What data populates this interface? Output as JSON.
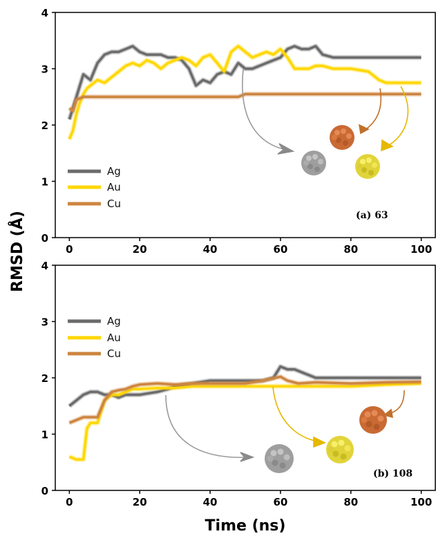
{
  "colors": {
    "Ag": "#6b6b6b",
    "Au": "#ffd700",
    "Cu": "#cd853f"
  },
  "chart_data": [
    {
      "type": "line",
      "panel_label": "(a) 63",
      "xlabel": "Time (ns)",
      "ylabel": "RMSD (Å)",
      "xlim": [
        -4,
        104
      ],
      "ylim": [
        0,
        4
      ],
      "xticks": [
        0,
        20,
        40,
        60,
        80,
        100
      ],
      "yticks": [
        0,
        1,
        2,
        3,
        4
      ],
      "legend_position": "center-left",
      "series": [
        {
          "name": "Ag",
          "x": [
            0,
            1,
            2,
            3,
            4,
            5,
            6,
            8,
            10,
            12,
            14,
            16,
            18,
            20,
            22,
            24,
            26,
            28,
            30,
            32,
            34,
            36,
            38,
            40,
            42,
            44,
            46,
            48,
            50,
            52,
            54,
            56,
            58,
            60,
            62,
            64,
            66,
            68,
            70,
            72,
            75,
            80,
            85,
            90,
            95,
            100
          ],
          "values": [
            2.1,
            2.3,
            2.5,
            2.7,
            2.9,
            2.85,
            2.8,
            3.1,
            3.25,
            3.3,
            3.3,
            3.35,
            3.4,
            3.3,
            3.25,
            3.25,
            3.25,
            3.2,
            3.2,
            3.15,
            3.0,
            2.7,
            2.8,
            2.75,
            2.9,
            2.95,
            2.9,
            3.1,
            3.0,
            3.0,
            3.05,
            3.1,
            3.15,
            3.2,
            3.35,
            3.4,
            3.35,
            3.35,
            3.4,
            3.25,
            3.2,
            3.2,
            3.2,
            3.2,
            3.2,
            3.2
          ]
        },
        {
          "name": "Au",
          "x": [
            0,
            1,
            2,
            3,
            4,
            5,
            6,
            8,
            10,
            12,
            14,
            16,
            18,
            20,
            22,
            24,
            26,
            28,
            30,
            32,
            34,
            36,
            38,
            40,
            42,
            44,
            46,
            48,
            50,
            52,
            54,
            56,
            58,
            60,
            62,
            64,
            66,
            68,
            70,
            72,
            75,
            80,
            85,
            88,
            90,
            92,
            95,
            100
          ],
          "values": [
            1.75,
            1.9,
            2.2,
            2.4,
            2.55,
            2.65,
            2.7,
            2.8,
            2.75,
            2.85,
            2.95,
            3.05,
            3.1,
            3.05,
            3.15,
            3.1,
            3.0,
            3.1,
            3.15,
            3.2,
            3.15,
            3.05,
            3.2,
            3.25,
            3.1,
            2.95,
            3.3,
            3.4,
            3.3,
            3.2,
            3.25,
            3.3,
            3.25,
            3.35,
            3.2,
            3.0,
            3.0,
            3.0,
            3.05,
            3.05,
            3.0,
            3.0,
            2.95,
            2.8,
            2.75,
            2.75,
            2.75,
            2.75
          ]
        },
        {
          "name": "Cu",
          "x": [
            0,
            1,
            2,
            4,
            6,
            10,
            20,
            30,
            40,
            45,
            48,
            50,
            52,
            60,
            70,
            80,
            90,
            100
          ],
          "values": [
            2.3,
            2.25,
            2.45,
            2.5,
            2.5,
            2.5,
            2.5,
            2.5,
            2.5,
            2.5,
            2.5,
            2.55,
            2.55,
            2.55,
            2.55,
            2.55,
            2.55,
            2.55
          ]
        }
      ]
    },
    {
      "type": "line",
      "panel_label": "(b) 108",
      "xlabel": "Time (ns)",
      "ylabel": "RMSD (Å)",
      "xlim": [
        -4,
        104
      ],
      "ylim": [
        0,
        4
      ],
      "xticks": [
        0,
        20,
        40,
        60,
        80,
        100
      ],
      "yticks": [
        0,
        1,
        2,
        3,
        4
      ],
      "legend_position": "upper-left",
      "series": [
        {
          "name": "Ag",
          "x": [
            0,
            2,
            4,
            6,
            8,
            10,
            12,
            14,
            16,
            18,
            20,
            22,
            25,
            28,
            30,
            35,
            40,
            45,
            50,
            55,
            58,
            60,
            62,
            64,
            66,
            70,
            75,
            80,
            85,
            90,
            95,
            100
          ],
          "values": [
            1.5,
            1.6,
            1.7,
            1.75,
            1.75,
            1.7,
            1.7,
            1.65,
            1.7,
            1.7,
            1.7,
            1.72,
            1.75,
            1.8,
            1.85,
            1.9,
            1.95,
            1.95,
            1.95,
            1.95,
            2.0,
            2.2,
            2.15,
            2.15,
            2.1,
            2.0,
            2.0,
            2.0,
            2.0,
            2.0,
            2.0,
            2.0
          ]
        },
        {
          "name": "Au",
          "x": [
            0,
            2,
            4,
            5,
            6,
            8,
            10,
            12,
            14,
            16,
            18,
            20,
            25,
            30,
            35,
            40,
            50,
            60,
            70,
            80,
            90,
            100
          ],
          "values": [
            0.6,
            0.55,
            0.55,
            1.1,
            1.2,
            1.2,
            1.6,
            1.7,
            1.7,
            1.75,
            1.8,
            1.8,
            1.82,
            1.82,
            1.85,
            1.85,
            1.85,
            1.85,
            1.85,
            1.85,
            1.88,
            1.9
          ]
        },
        {
          "name": "Cu",
          "x": [
            0,
            2,
            4,
            6,
            8,
            10,
            12,
            14,
            16,
            18,
            20,
            25,
            30,
            35,
            40,
            45,
            50,
            55,
            60,
            62,
            65,
            70,
            80,
            90,
            100
          ],
          "values": [
            1.2,
            1.25,
            1.3,
            1.3,
            1.3,
            1.6,
            1.75,
            1.78,
            1.8,
            1.85,
            1.88,
            1.9,
            1.88,
            1.9,
            1.9,
            1.9,
            1.9,
            1.95,
            2.02,
            1.95,
            1.9,
            1.92,
            1.9,
            1.92,
            1.93
          ]
        }
      ]
    }
  ]
}
